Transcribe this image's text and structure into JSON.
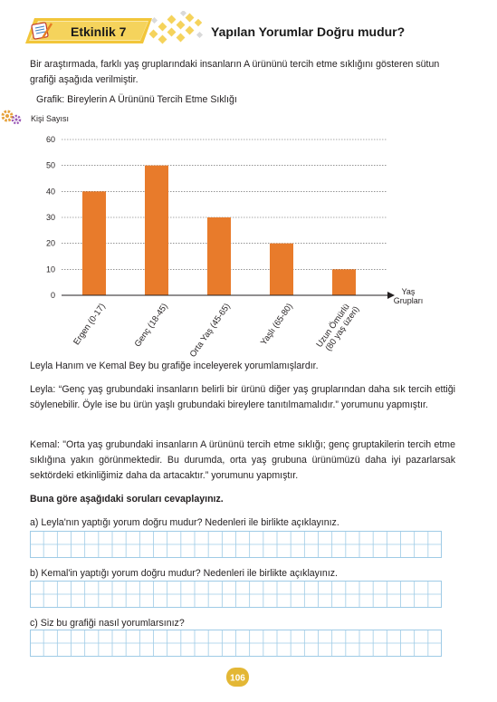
{
  "header": {
    "activity_label": "Etkinlik 7",
    "title": "Yapılan Yorumlar Doğru mudur?"
  },
  "intro_text": "Bir araştırmada, farklı yaş gruplarındaki insanların A ürününü tercih etme sıklığını gösteren sütun grafiği aşağıda verilmiştir.",
  "chart_caption": "Grafik: Bireylerin A Ürününü Tercih Etme Sıklığı",
  "chart_data": {
    "type": "bar",
    "ylabel": "Kişi Sayısı",
    "xlabel": "Yaş Grupları",
    "xlabel_line1": "Yaş",
    "xlabel_line2": "Grupları",
    "ylim": [
      0,
      60
    ],
    "yticks": [
      0,
      10,
      20,
      30,
      40,
      50,
      60
    ],
    "categories": [
      "Ergen (0-17)",
      "Genç (18-45)",
      "Orta Yaş (45-65)",
      "Yaşlı (65-80)",
      "Uzun Ömürlü (80 yaş üzeri)"
    ],
    "category_lines": [
      [
        "Ergen (0-17)"
      ],
      [
        "Genç (18-45)"
      ],
      [
        "Orta Yaş (45-65)"
      ],
      [
        "Yaşlı (65-80)"
      ],
      [
        "Uzun Ömürlü",
        "(80 yaş üzeri)"
      ]
    ],
    "values": [
      40,
      50,
      30,
      20,
      10
    ],
    "grid": true,
    "bar_color": "#e87b2b"
  },
  "after_chart": "Leyla Hanım ve Kemal Bey bu grafiğe inceleyerek yorumlamışlardır.",
  "leyla_text": "Leyla: “Genç yaş grubundaki insanların belirli bir ürünü diğer yaş gruplarından daha sık tercih ettiği söylenebilir. Öyle ise bu ürün yaşlı grubundaki bireylere tanıtılmamalıdır.” yorumunu yapmıştır.",
  "kemal_text": "Kemal: \"Orta yaş grubundaki insanların A ürününü tercih etme sıklığı; genç gruptakilerin tercih etme sıklığına yakın görünmektedir. Bu durumda, orta yaş grubuna ürünümüzü daha iyi pazarlarsak sektördeki etkinliğimiz daha da artacaktır.” yorumunu yapmıştır.",
  "instruction": "Buna göre aşağıdaki soruları cevaplayınız.",
  "questions": {
    "a": "a) Leyla'nın yaptığı yorum doğru mudur? Nedenleri ile birlikte açıklayınız.",
    "b": "b) Kemal'in yaptığı yorum doğru mudur? Nedenleri ile birlikte açıklayınız.",
    "c": "c) Siz bu grafiği nasıl yorumlarsınız?"
  },
  "page_number": "106",
  "colors": {
    "banner_yellow": "#f2c63a",
    "bar_orange": "#e87b2b",
    "grid_blue": "#9fcbe6",
    "page_badge": "#e3b735"
  }
}
